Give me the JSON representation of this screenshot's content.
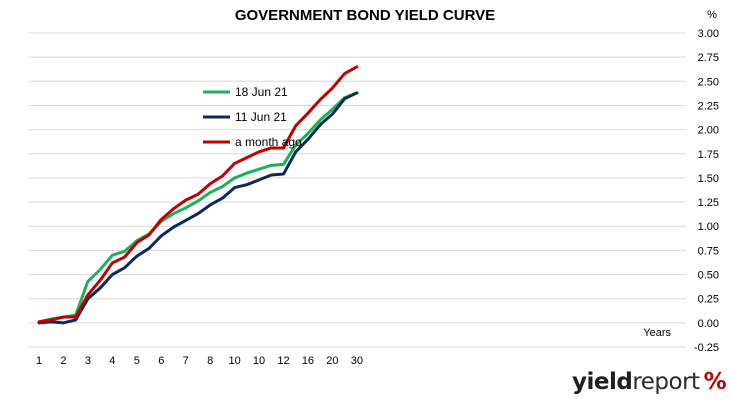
{
  "chart_data": {
    "type": "line",
    "title": "GOVERNMENT BOND YIELD CURVE",
    "y_unit": "%",
    "x_label": "Years",
    "x_tick_labels": [
      "1",
      "2",
      "3",
      "4",
      "5",
      "6",
      "7",
      "8",
      "10",
      "10",
      "12",
      "16",
      "20",
      "30"
    ],
    "y_ticks": [
      "3.00",
      "2.75",
      "2.50",
      "2.25",
      "2.00",
      "1.75",
      "1.50",
      "1.25",
      "1.00",
      "0.75",
      "0.50",
      "0.25",
      "0.00",
      "-0.25"
    ],
    "ylim": [
      -0.25,
      3.0
    ],
    "grid": "horizontal",
    "legend_position": "top-left",
    "x_positions": [
      1,
      1.5,
      2,
      2.5,
      3,
      3.5,
      4,
      4.5,
      5,
      5.5,
      6,
      6.5,
      7,
      7.5,
      8,
      8.5,
      9,
      9.5,
      10,
      10.5,
      11,
      11.5,
      12,
      12.5,
      13,
      13.5,
      14
    ],
    "series": [
      {
        "name": "18 Jun 21",
        "color": "#1db05a",
        "values": [
          0.01,
          0.04,
          0.06,
          0.08,
          0.43,
          0.55,
          0.7,
          0.74,
          0.85,
          0.92,
          1.05,
          1.13,
          1.19,
          1.26,
          1.35,
          1.41,
          1.5,
          1.55,
          1.59,
          1.63,
          1.64,
          1.84,
          1.96,
          2.1,
          2.21,
          2.33,
          2.38
        ]
      },
      {
        "name": "11 Jun 21",
        "color": "#0c2a5c",
        "values": [
          0.0,
          0.01,
          0.0,
          0.03,
          0.25,
          0.36,
          0.5,
          0.57,
          0.69,
          0.77,
          0.9,
          0.99,
          1.06,
          1.13,
          1.22,
          1.29,
          1.4,
          1.43,
          1.48,
          1.53,
          1.54,
          1.77,
          1.9,
          2.05,
          2.16,
          2.32,
          2.38
        ]
      },
      {
        "name": "a month ago",
        "color": "#c00000",
        "values": [
          0.01,
          0.03,
          0.06,
          0.06,
          0.29,
          0.44,
          0.62,
          0.68,
          0.83,
          0.91,
          1.07,
          1.18,
          1.27,
          1.33,
          1.44,
          1.52,
          1.65,
          1.71,
          1.77,
          1.81,
          1.81,
          2.04,
          2.17,
          2.31,
          2.43,
          2.58,
          2.65
        ]
      }
    ]
  },
  "branding": {
    "logo_bold": "yield",
    "logo_light": "report",
    "logo_symbol": "%",
    "logo_color": "#c00000"
  }
}
